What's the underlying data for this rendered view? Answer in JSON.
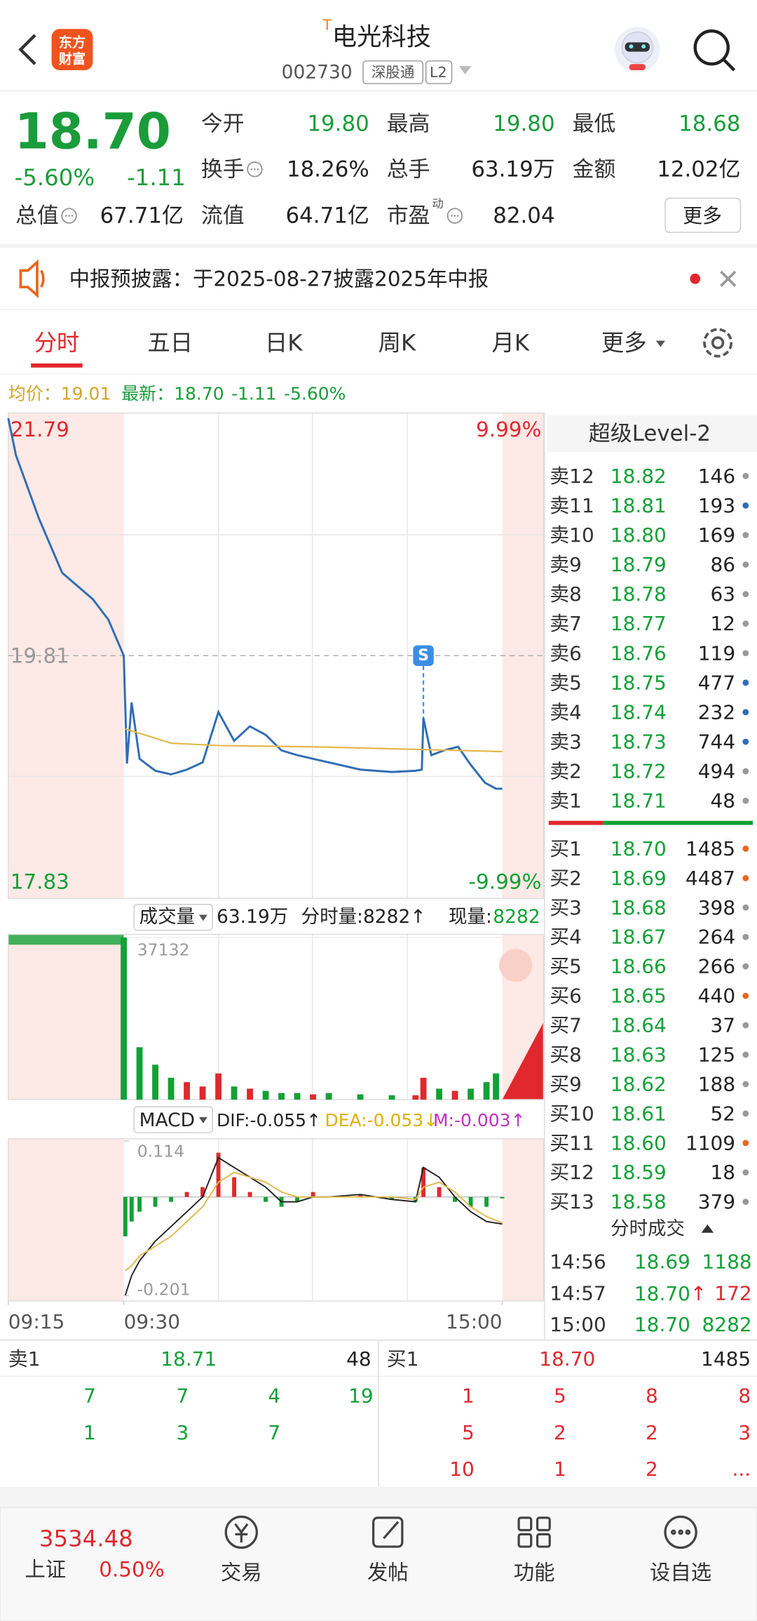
{
  "header": {
    "logo": [
      "东方",
      "财富"
    ],
    "title_mark": "T",
    "title": "电光科技",
    "code": "002730",
    "tags": [
      "深股通",
      "L2"
    ]
  },
  "quote": {
    "price": "18.70",
    "change_pct": "-5.60%",
    "change": "-1.11",
    "color": "#1a9c3a",
    "rows": [
      [
        {
          "label": "今开",
          "value": "19.80",
          "color": "#1a9c3a"
        },
        {
          "label": "最高",
          "value": "19.80",
          "color": "#1a9c3a"
        },
        {
          "label": "最低",
          "value": "18.68",
          "color": "#1a9c3a"
        }
      ],
      [
        {
          "label": "换手",
          "info_icon": true,
          "value": "18.26%"
        },
        {
          "label": "总手",
          "value": "63.19万"
        },
        {
          "label": "金额",
          "value": "12.02亿"
        }
      ],
      [
        {
          "label": "总值",
          "info_icon": true,
          "value": "67.71亿"
        },
        {
          "label": "流值",
          "value": "64.71亿"
        },
        {
          "label": "市盈",
          "sup": "动",
          "info_icon": true,
          "value": "82.04"
        }
      ]
    ],
    "more": "更多"
  },
  "notice": {
    "text": "中报预披露：于2025-08-27披露2025年中报"
  },
  "tabs": {
    "items": [
      "分时",
      "五日",
      "日K",
      "周K",
      "月K",
      "更多"
    ],
    "active": 0
  },
  "summary": [
    {
      "text": "均价：",
      "color": "#d4a52a"
    },
    {
      "text": "19.01",
      "color": "#d4a52a"
    },
    {
      "text": "最新：",
      "color": "#1a9c3a"
    },
    {
      "text": "18.70",
      "color": "#1a9c3a"
    },
    {
      "text": "-1.11",
      "color": "#1a9c3a"
    },
    {
      "text": "-5.60%",
      "color": "#1a9c3a"
    }
  ],
  "chart_data": [
    {
      "type": "line",
      "ylim": [
        17.83,
        21.79
      ],
      "yticks": [
        21.79,
        19.81,
        17.83
      ],
      "ytick_colors": [
        "#e0282e",
        "#999999",
        "#13a036"
      ],
      "y2lim": [
        -9.99,
        9.99
      ],
      "y2ticks": [
        {
          "value": 9.99,
          "label": "9.99%"
        },
        {
          "value": -9.99,
          "label": "-9.99%"
        }
      ],
      "y2tick_colors": [
        "#e0282e",
        "#13a036"
      ],
      "series": [
        {
          "color": "#2f6db5",
          "x": [
            "09:15",
            "09:16",
            "09:19",
            "09:22",
            "09:26",
            "09:28",
            "09:30",
            "09:32",
            "09:35",
            "09:40",
            "09:50",
            "10:00",
            "10:10",
            "10:20",
            "10:30",
            "10:40",
            "10:50",
            "11:00",
            "11:10",
            "11:20",
            "11:30",
            "13:10",
            "13:30",
            "13:50",
            "14:05",
            "14:09",
            "14:10",
            "14:15",
            "14:23",
            "14:32",
            "14:40",
            "14:49",
            "14:56",
            "15:00"
          ],
          "values": [
            21.79,
            21.48,
            20.95,
            20.5,
            20.28,
            20.11,
            19.81,
            18.91,
            19.42,
            18.95,
            18.85,
            18.82,
            18.86,
            18.92,
            19.34,
            19.1,
            19.22,
            19.15,
            19.02,
            18.98,
            18.95,
            18.92,
            18.86,
            18.84,
            18.85,
            18.86,
            19.29,
            18.98,
            19.02,
            19.05,
            18.9,
            18.75,
            18.7,
            18.7
          ]
        },
        {
          "color": "#e3b84a",
          "x": [
            "09:31",
            "10:00",
            "10:30",
            "11:30",
            "14:00",
            "15:00"
          ],
          "values": [
            19.2,
            19.08,
            19.06,
            19.05,
            19.03,
            19.01
          ]
        }
      ],
      "annotations": [
        {
          "x": "14:10",
          "label": "S"
        }
      ]
    },
    {
      "type": "bar",
      "title": "成交量",
      "total": "63.19万",
      "minute_volume": "分时量:8282↑",
      "current_label": "现量:",
      "current": "8282",
      "current_color": "#13a036",
      "ylim": [
        0,
        37132
      ],
      "yticks": [
        37132
      ],
      "x": [
        "09:30",
        "09:40",
        "09:50",
        "10:00",
        "10:10",
        "10:20",
        "10:30",
        "10:40",
        "10:50",
        "11:00",
        "11:10",
        "11:20",
        "11:30",
        "13:10",
        "13:30",
        "13:50",
        "14:05",
        "14:10",
        "14:20",
        "14:30",
        "14:40",
        "14:50",
        "14:56"
      ],
      "series": [
        {
          "color": "#e0282e",
          "values": [
            null,
            null,
            null,
            null,
            4000,
            3000,
            6000,
            null,
            2500,
            null,
            null,
            null,
            1200,
            null,
            null,
            null,
            1000,
            5000,
            null,
            2000,
            null,
            null,
            null
          ]
        },
        {
          "color": "#13a036",
          "values": [
            37132,
            12000,
            8000,
            5000,
            null,
            null,
            null,
            3000,
            null,
            2000,
            1500,
            1500,
            null,
            1500,
            1200,
            1000,
            null,
            null,
            2500,
            null,
            2500,
            4000,
            6000
          ]
        }
      ]
    },
    {
      "type": "macd",
      "title": "MACD",
      "labels": [
        {
          "text": "DIF:-0.055↑",
          "color": "#222222"
        },
        {
          "text": "DEA:-0.053↓",
          "color": "#e0b000"
        },
        {
          "text": "M:-0.003↑",
          "color": "#c030c0"
        }
      ],
      "ylim": [
        -0.201,
        0.114
      ],
      "yticks": [
        0.114,
        -0.201
      ],
      "xticks": [
        "09:15",
        "09:30",
        "15:00"
      ],
      "x": [
        "09:31",
        "09:35",
        "09:40",
        "09:50",
        "10:00",
        "10:10",
        "10:20",
        "10:30",
        "10:40",
        "10:50",
        "11:00",
        "11:10",
        "11:20",
        "11:30",
        "13:10",
        "13:30",
        "13:50",
        "14:05",
        "14:10",
        "14:20",
        "14:30",
        "14:40",
        "14:50",
        "15:00"
      ],
      "series": [
        {
          "kind": "bar",
          "up_color": "#e0282e",
          "down_color": "#13a036",
          "values": [
            -0.08,
            -0.05,
            -0.03,
            -0.02,
            -0.01,
            0.01,
            0.02,
            0.09,
            0.04,
            0.01,
            -0.01,
            -0.02,
            -0.01,
            0.01,
            0,
            0.005,
            -0.005,
            -0.01,
            0.06,
            0.02,
            -0.01,
            -0.02,
            -0.02,
            -0.003
          ]
        },
        {
          "kind": "line",
          "color": "#222222",
          "values": [
            -0.2,
            -0.16,
            -0.13,
            -0.09,
            -0.06,
            -0.03,
            0,
            0.08,
            0.06,
            0.04,
            0.02,
            -0.01,
            -0.01,
            0,
            0,
            0.005,
            -0.005,
            -0.01,
            0.06,
            0.04,
            0,
            -0.03,
            -0.05,
            -0.055
          ]
        },
        {
          "kind": "line",
          "color": "#e3b84a",
          "values": [
            -0.15,
            -0.14,
            -0.12,
            -0.1,
            -0.08,
            -0.05,
            -0.02,
            0.03,
            0.05,
            0.04,
            0.03,
            0.01,
            0,
            0,
            0,
            0,
            0,
            -0.005,
            0.02,
            0.03,
            0.01,
            -0.02,
            -0.04,
            -0.053
          ]
        }
      ]
    }
  ],
  "level2": {
    "title": "超级Level-2",
    "price_color": "#13a036",
    "asks": [
      {
        "label": "卖12",
        "price": "18.82",
        "qty": "146",
        "dot": "#999999"
      },
      {
        "label": "卖11",
        "price": "18.81",
        "qty": "193",
        "dot": "#2f6db5"
      },
      {
        "label": "卖10",
        "price": "18.80",
        "qty": "169",
        "dot": "#999999"
      },
      {
        "label": "卖9",
        "price": "18.79",
        "qty": "86",
        "dot": "#999999"
      },
      {
        "label": "卖8",
        "price": "18.78",
        "qty": "63",
        "dot": "#999999"
      },
      {
        "label": "卖7",
        "price": "18.77",
        "qty": "12",
        "dot": "#999999"
      },
      {
        "label": "卖6",
        "price": "18.76",
        "qty": "119",
        "dot": "#999999"
      },
      {
        "label": "卖5",
        "price": "18.75",
        "qty": "477",
        "dot": "#2f6db5"
      },
      {
        "label": "卖4",
        "price": "18.74",
        "qty": "232",
        "dot": "#2f6db5"
      },
      {
        "label": "卖3",
        "price": "18.73",
        "qty": "744",
        "dot": "#2f6db5"
      },
      {
        "label": "卖2",
        "price": "18.72",
        "qty": "494",
        "dot": "#999999"
      },
      {
        "label": "卖1",
        "price": "18.71",
        "qty": "48",
        "dot": "#999999"
      }
    ],
    "bids": [
      {
        "label": "买1",
        "price": "18.70",
        "qty": "1485",
        "dot": "#e8661e"
      },
      {
        "label": "买2",
        "price": "18.69",
        "qty": "4487",
        "dot": "#e8661e"
      },
      {
        "label": "买3",
        "price": "18.68",
        "qty": "398",
        "dot": "#999999"
      },
      {
        "label": "买4",
        "price": "18.67",
        "qty": "264",
        "dot": "#999999"
      },
      {
        "label": "买5",
        "price": "18.66",
        "qty": "266",
        "dot": "#999999"
      },
      {
        "label": "买6",
        "price": "18.65",
        "qty": "440",
        "dot": "#e8661e"
      },
      {
        "label": "买7",
        "price": "18.64",
        "qty": "37",
        "dot": "#999999"
      },
      {
        "label": "买8",
        "price": "18.63",
        "qty": "125",
        "dot": "#999999"
      },
      {
        "label": "买9",
        "price": "18.62",
        "qty": "188",
        "dot": "#999999"
      },
      {
        "label": "买10",
        "price": "18.61",
        "qty": "52",
        "dot": "#999999"
      },
      {
        "label": "买11",
        "price": "18.60",
        "qty": "1109",
        "dot": "#e8661e"
      },
      {
        "label": "买12",
        "price": "18.59",
        "qty": "18",
        "dot": "#999999"
      },
      {
        "label": "买13",
        "price": "18.58",
        "qty": "379",
        "dot": "#999999"
      }
    ]
  },
  "trades": {
    "title": "分时成交",
    "rows": [
      {
        "time": "14:56",
        "price": "18.69",
        "qty": "1188",
        "price_color": "#13a036",
        "qty_color": "#13a036"
      },
      {
        "time": "14:57",
        "price": "18.70",
        "arrow": "↑",
        "qty": "172",
        "price_color": "#13a036",
        "qty_color": "#e0282e"
      },
      {
        "time": "15:00",
        "price": "18.70",
        "qty": "8282",
        "price_color": "#13a036",
        "qty_color": "#13a036"
      }
    ]
  },
  "queue": {
    "ask": {
      "label": "卖1",
      "price": "18.71",
      "qty": "48",
      "color": "#13a036",
      "orders": [
        [
          "7",
          "7",
          "4",
          "19"
        ],
        [
          "1",
          "3",
          "7"
        ]
      ]
    },
    "bid": {
      "label": "买1",
      "price": "18.70",
      "qty": "1485",
      "color": "#e0282e",
      "orders": [
        [
          "1",
          "5",
          "8",
          "8"
        ],
        [
          "5",
          "2",
          "2",
          "3"
        ],
        [
          "10",
          "1",
          "2",
          "..."
        ]
      ]
    }
  },
  "footer": {
    "index": {
      "value": "3534.48",
      "name": "上证",
      "change": "0.50%",
      "color": "#e0282e"
    },
    "items": [
      "交易",
      "发帖",
      "功能",
      "设自选"
    ]
  }
}
